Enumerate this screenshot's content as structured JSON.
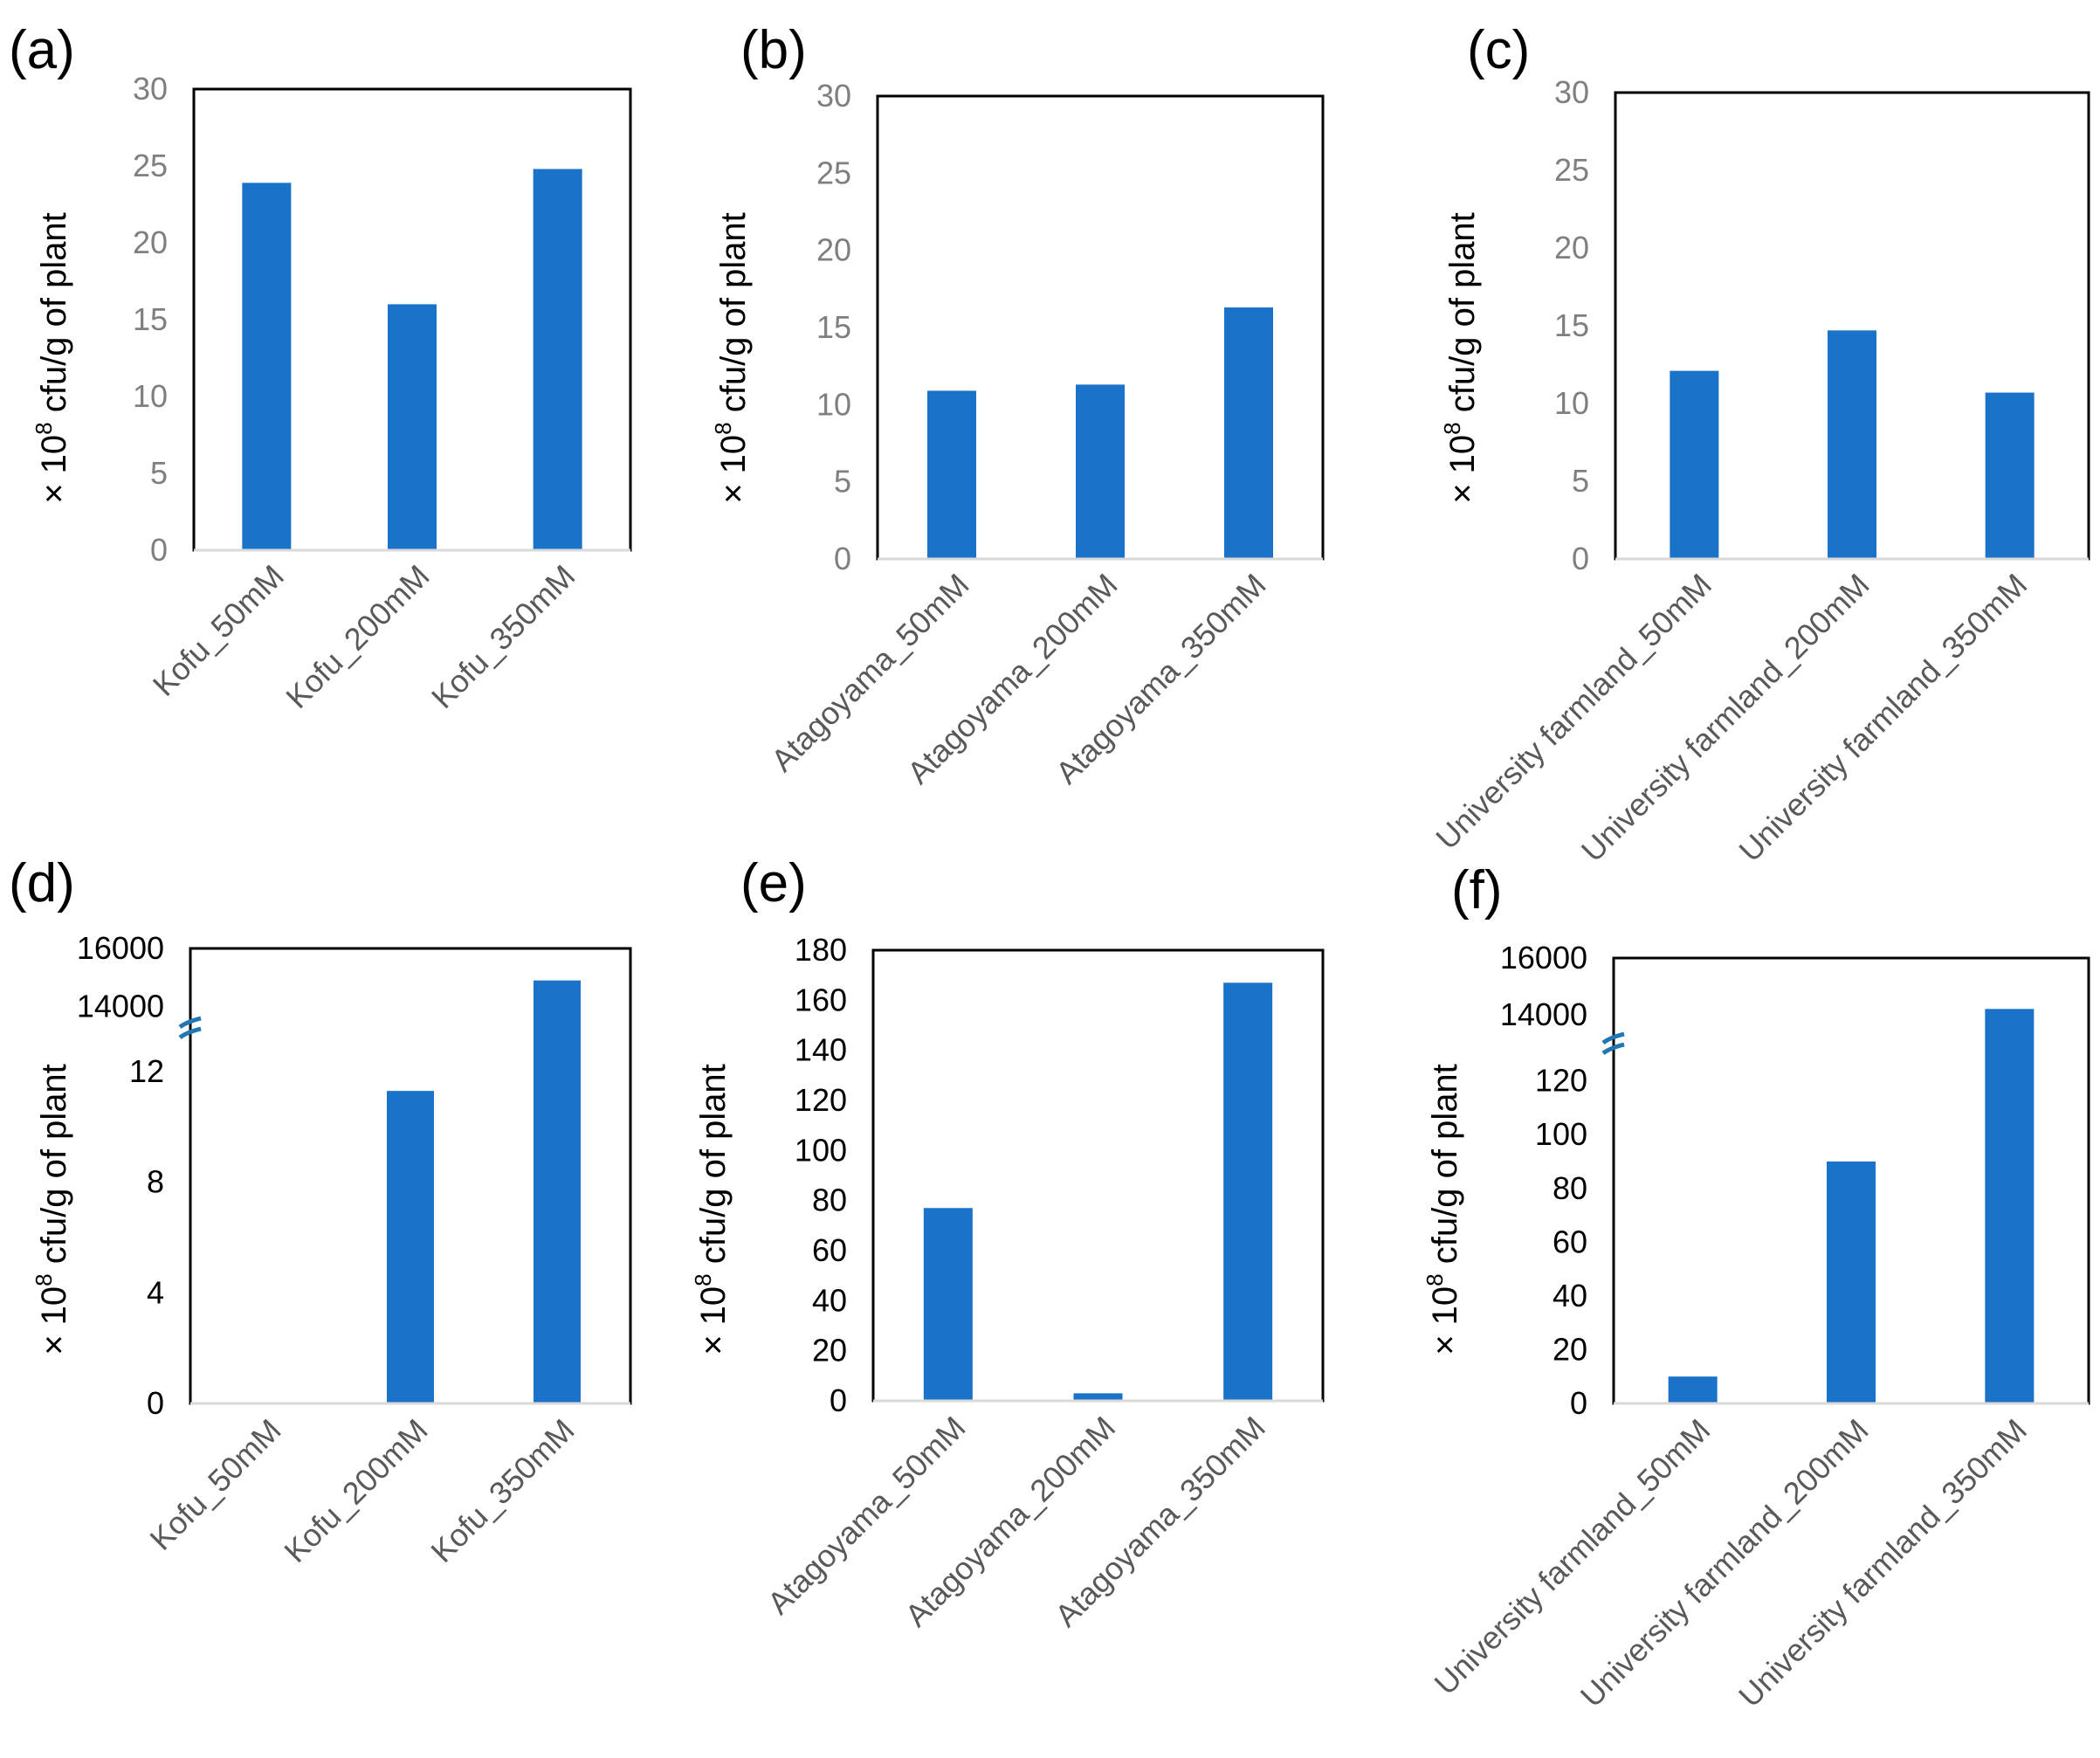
{
  "figure": {
    "y_label_prefix": "× 10",
    "y_label_exp": "8",
    "y_label_suffix": " cfu/g of plant"
  },
  "colors": {
    "bar": "#1a73c9",
    "break_mark": "#1f77b4"
  },
  "chart_data": [
    {
      "panel": "(a)",
      "type": "bar",
      "categories": [
        "Kofu_50mM",
        "Kofu_200mM",
        "Kofu_350mM"
      ],
      "values": [
        23.9,
        16.0,
        24.8
      ],
      "ylim": [
        0,
        30
      ],
      "yticks": [
        "0",
        "5",
        "10",
        "15",
        "20",
        "25",
        "30"
      ],
      "ytick_values": [
        0,
        5,
        10,
        15,
        20,
        25,
        30
      ],
      "tick_color": "grey",
      "ylabel": "× 10^8 cfu/g of plant"
    },
    {
      "panel": "(b)",
      "type": "bar",
      "categories": [
        "Atagoyama_50mM",
        "Atagoyama_200mM",
        "Atagoyama_350mM"
      ],
      "values": [
        10.9,
        11.3,
        16.3
      ],
      "ylim": [
        0,
        30
      ],
      "yticks": [
        "0",
        "5",
        "10",
        "15",
        "20",
        "25",
        "30"
      ],
      "ytick_values": [
        0,
        5,
        10,
        15,
        20,
        25,
        30
      ],
      "tick_color": "grey",
      "ylabel": "× 10^8 cfu/g of plant"
    },
    {
      "panel": "(c)",
      "type": "bar",
      "categories": [
        "University farmland_50mM",
        "University farmland_200mM",
        "University farmland_350mM"
      ],
      "values": [
        12.1,
        14.7,
        10.7
      ],
      "ylim": [
        0,
        30
      ],
      "yticks": [
        "0",
        "5",
        "10",
        "15",
        "20",
        "25",
        "30"
      ],
      "ytick_values": [
        0,
        5,
        10,
        15,
        20,
        25,
        30
      ],
      "tick_color": "grey",
      "ylabel": "× 10^8 cfu/g of plant"
    },
    {
      "panel": "(d)",
      "type": "bar",
      "broken_axis": true,
      "categories": [
        "Kofu_50mM",
        "Kofu_200mM",
        "Kofu_350mM"
      ],
      "values": [
        0,
        11.3,
        14900
      ],
      "ylim": [
        0,
        16000
      ],
      "yticks": [
        "0",
        "4",
        "8",
        "12",
        "14000",
        "16000"
      ],
      "ytick_values": [
        0,
        4,
        8,
        12,
        14000,
        16000
      ],
      "tick_color": "dark",
      "ylabel": "× 10^8 cfu/g of plant"
    },
    {
      "panel": "(e)",
      "type": "bar",
      "categories": [
        "Atagoyama_50mM",
        "Atagoyama_200mM",
        "Atagoyama_350mM"
      ],
      "values": [
        77,
        3,
        167
      ],
      "ylim": [
        0,
        180
      ],
      "yticks": [
        "0",
        "20",
        "40",
        "60",
        "80",
        "100",
        "120",
        "140",
        "160",
        "180"
      ],
      "ytick_values": [
        0,
        20,
        40,
        60,
        80,
        100,
        120,
        140,
        160,
        180
      ],
      "tick_color": "dark",
      "ylabel": "× 10^8 cfu/g of plant"
    },
    {
      "panel": "(f)",
      "type": "bar",
      "broken_axis": true,
      "categories": [
        "University farmland_50mM",
        "University farmland_200mM",
        "University farmland_350mM"
      ],
      "values": [
        10,
        90,
        14200
      ],
      "ylim": [
        0,
        16000
      ],
      "yticks": [
        "0",
        "20",
        "40",
        "60",
        "80",
        "100",
        "120",
        "14000",
        "16000"
      ],
      "ytick_values": [
        0,
        20,
        40,
        60,
        80,
        100,
        120,
        14000,
        16000
      ],
      "tick_color": "dark",
      "ylabel": "× 10^8 cfu/g of plant"
    }
  ]
}
